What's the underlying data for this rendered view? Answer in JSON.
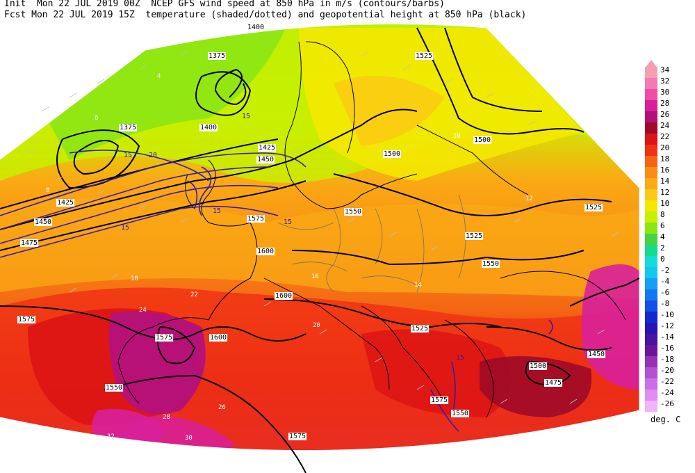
{
  "header": {
    "line1": "Init  Mon 22 JUL 2019 00Z  NCEP GFS wind speed at 850 hPa in m/s (contours/barbs)",
    "line2": "Fcst Mon 22 JUL 2019 15Z  temperature (shaded/dotted) and geopotential height at 850 hPa (black)"
  },
  "legend": {
    "units": "deg. C",
    "levels": [
      {
        "label": "34",
        "color": "#f4a0b0"
      },
      {
        "label": "32",
        "color": "#f47ab4"
      },
      {
        "label": "30",
        "color": "#ee4ea8"
      },
      {
        "label": "28",
        "color": "#d8209a"
      },
      {
        "label": "26",
        "color": "#b4107c"
      },
      {
        "label": "24",
        "color": "#a00a28"
      },
      {
        "label": "22",
        "color": "#dc1414"
      },
      {
        "label": "20",
        "color": "#f03214"
      },
      {
        "label": "18",
        "color": "#f46414"
      },
      {
        "label": "16",
        "color": "#f88c14"
      },
      {
        "label": "14",
        "color": "#faaa14"
      },
      {
        "label": "12",
        "color": "#fcc814"
      },
      {
        "label": "10",
        "color": "#f4e800"
      },
      {
        "label": "8",
        "color": "#c8f000"
      },
      {
        "label": "6",
        "color": "#8ce614"
      },
      {
        "label": "4",
        "color": "#46d246"
      },
      {
        "label": "2",
        "color": "#14dc8c"
      },
      {
        "label": "0",
        "color": "#14dcdc"
      },
      {
        "label": "-2",
        "color": "#14c8f0"
      },
      {
        "label": "-4",
        "color": "#14a0f4"
      },
      {
        "label": "-6",
        "color": "#1478f0"
      },
      {
        "label": "-8",
        "color": "#1450e6"
      },
      {
        "label": "-10",
        "color": "#1428d2"
      },
      {
        "label": "-12",
        "color": "#2814b4"
      },
      {
        "label": "-14",
        "color": "#4614a0"
      },
      {
        "label": "-16",
        "color": "#6e149a"
      },
      {
        "label": "-18",
        "color": "#9632b4"
      },
      {
        "label": "-20",
        "color": "#b450d2"
      },
      {
        "label": "-22",
        "color": "#cc6ee6"
      },
      {
        "label": "-24",
        "color": "#e08cf0"
      },
      {
        "label": "-26",
        "color": "#f0b4f8"
      }
    ]
  },
  "height_labels": [
    "1400",
    "1375",
    "1525",
    "1375",
    "1400",
    "1425",
    "1450",
    "1500",
    "1500",
    "1425",
    "1450",
    "1475",
    "1550",
    "1575",
    "1525",
    "1525",
    "1600",
    "1550",
    "1600",
    "1575",
    "1600",
    "1575",
    "1525",
    "1500",
    "1475",
    "1450",
    "1550",
    "1575",
    "1575",
    "1550"
  ],
  "temp_labels": [
    "4",
    "6",
    "8",
    "10",
    "12",
    "14",
    "16",
    "18",
    "20",
    "22",
    "24",
    "26",
    "28",
    "30",
    "32"
  ],
  "wind_labels": [
    "15",
    "20",
    "15",
    "15",
    "15",
    "15",
    "15"
  ],
  "colors": {
    "height_contour": "#000000",
    "wind_contour": "#3a1aa8",
    "coastline": "#000000"
  }
}
